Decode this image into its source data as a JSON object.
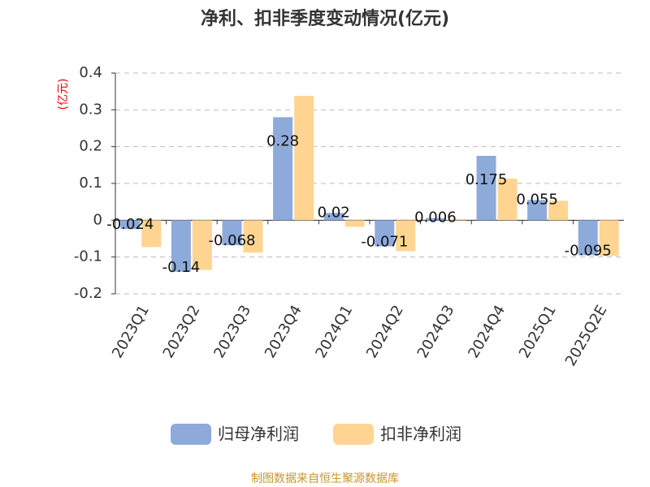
{
  "chart_data": {
    "type": "bar",
    "title": "净利、扣非季度变动情况(亿元)",
    "y_label": "(亿元)",
    "categories": [
      "2023Q1",
      "2023Q2",
      "2023Q3",
      "2023Q4",
      "2024Q1",
      "2024Q2",
      "2024Q3",
      "2024Q4",
      "2025Q1",
      "2025Q2E"
    ],
    "series": [
      {
        "name": "归母净利润",
        "color": "#8eaadb",
        "values": [
          -0.024,
          -0.14,
          -0.068,
          0.28,
          0.02,
          -0.071,
          0.006,
          0.175,
          0.055,
          -0.095
        ]
      },
      {
        "name": "扣非净利润",
        "color": "#ffd591",
        "values": [
          -0.073,
          -0.135,
          -0.088,
          0.338,
          -0.018,
          -0.084,
          0.003,
          0.113,
          0.053,
          -0.097
        ]
      }
    ],
    "ylim": [
      -0.2,
      0.4
    ],
    "yticks": [
      0.4,
      0.3,
      0.2,
      0.1,
      0,
      -0.1,
      -0.2
    ],
    "grid": true,
    "legend": "bottom",
    "source": "制图数据来自恒生聚源数据库"
  }
}
